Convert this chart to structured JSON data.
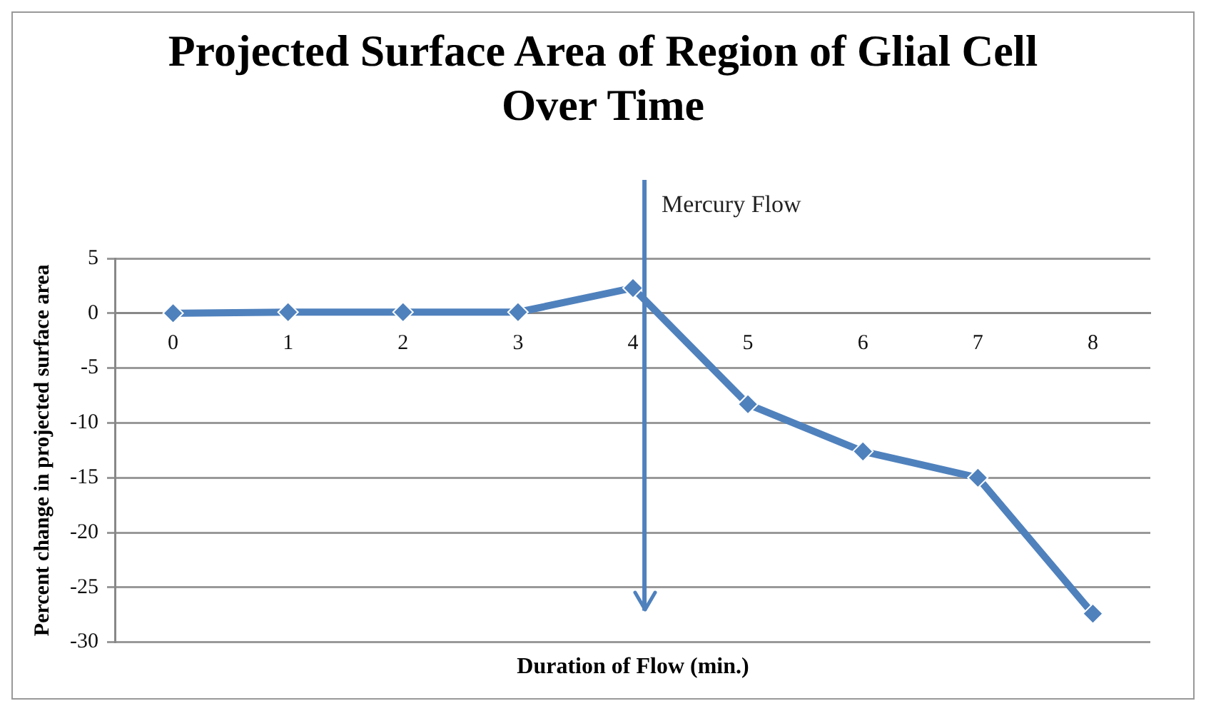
{
  "chart_data": {
    "type": "line",
    "title": "Projected Surface Area of Region of Glial Cell Over Time",
    "xlabel": "Duration of Flow (min.)",
    "ylabel": "Percent change in projected surface area",
    "x": [
      0,
      1,
      2,
      3,
      4,
      5,
      6,
      7,
      8
    ],
    "series": [
      {
        "color": "#4f81bd",
        "values": [
          0,
          0.1,
          0.1,
          0.1,
          2.3,
          -8.3,
          -12.6,
          -15,
          -27.4
        ]
      }
    ],
    "xlim": [
      -0.5,
      8.5
    ],
    "xticks": [
      0,
      1,
      2,
      3,
      4,
      5,
      6,
      7,
      8
    ],
    "ylim": [
      -30,
      5
    ],
    "yticks": [
      -30,
      -25,
      -20,
      -15,
      -10,
      -5,
      0,
      5
    ],
    "ref_lines": [
      {
        "axis": "x",
        "value": 4.1,
        "label": "Mercury Flow",
        "color": "#4f81bd"
      }
    ],
    "grid": "y",
    "marker": "diamond",
    "line_style": "solid",
    "legend": false
  }
}
